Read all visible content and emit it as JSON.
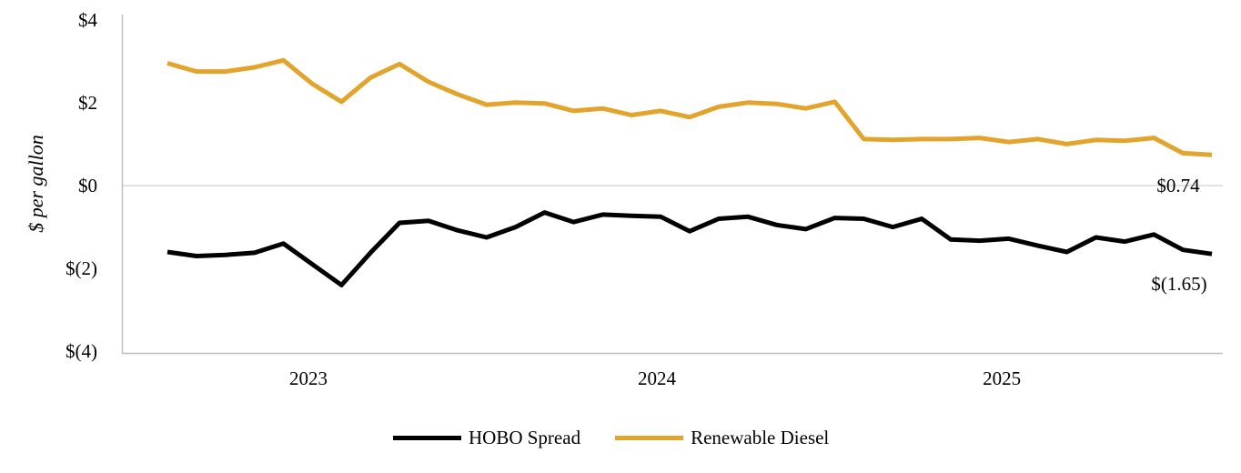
{
  "chart_data": {
    "type": "line",
    "title": "",
    "ylabel": "$ per gallon",
    "xlabel": "",
    "ylim": [
      -4,
      4
    ],
    "grid": "horizontal-zero-line-only",
    "legend_position": "bottom",
    "n_points": 37,
    "x_span_note": "monthly points spanning mid-2022 through mid-2025; only year labels shown",
    "y_ticks": [
      {
        "label": "$4",
        "value": 4
      },
      {
        "label": "$2",
        "value": 2
      },
      {
        "label": "$0",
        "value": 0
      },
      {
        "label": "$(2)",
        "value": -2
      },
      {
        "label": "$(4)",
        "value": -4
      }
    ],
    "x_ticks": [
      {
        "label": "2023",
        "pos": 4.86
      },
      {
        "label": "2024",
        "pos": 16.87
      },
      {
        "label": "2025",
        "pos": 28.76
      }
    ],
    "series": [
      {
        "name": "HOBO Spread",
        "color": "#000000",
        "end_label": "$(1.65)",
        "values": [
          -1.6,
          -1.7,
          -1.67,
          -1.62,
          -1.4,
          -1.9,
          -2.4,
          -1.62,
          -0.9,
          -0.85,
          -1.08,
          -1.25,
          -1.0,
          -0.65,
          -0.88,
          -0.7,
          -0.73,
          -0.75,
          -1.1,
          -0.8,
          -0.75,
          -0.95,
          -1.05,
          -0.78,
          -0.8,
          -1.0,
          -0.8,
          -1.3,
          -1.33,
          -1.28,
          -1.45,
          -1.6,
          -1.25,
          -1.35,
          -1.18,
          -1.55,
          -1.65
        ]
      },
      {
        "name": "Renewable Diesel",
        "color": "#E2A42C",
        "end_label": "$0.74",
        "values": [
          2.95,
          2.75,
          2.75,
          2.85,
          3.02,
          2.45,
          2.02,
          2.6,
          2.93,
          2.5,
          2.2,
          1.95,
          2.0,
          1.98,
          1.8,
          1.86,
          1.7,
          1.8,
          1.65,
          1.9,
          2.0,
          1.97,
          1.86,
          2.02,
          1.12,
          1.1,
          1.12,
          1.12,
          1.15,
          1.05,
          1.12,
          1.0,
          1.1,
          1.08,
          1.15,
          0.78,
          0.74
        ]
      }
    ]
  },
  "colors": {
    "background": "#FFFFFF",
    "axis": "#BFBFBF",
    "gridline": "#D9D9D9",
    "text": "#000000"
  }
}
